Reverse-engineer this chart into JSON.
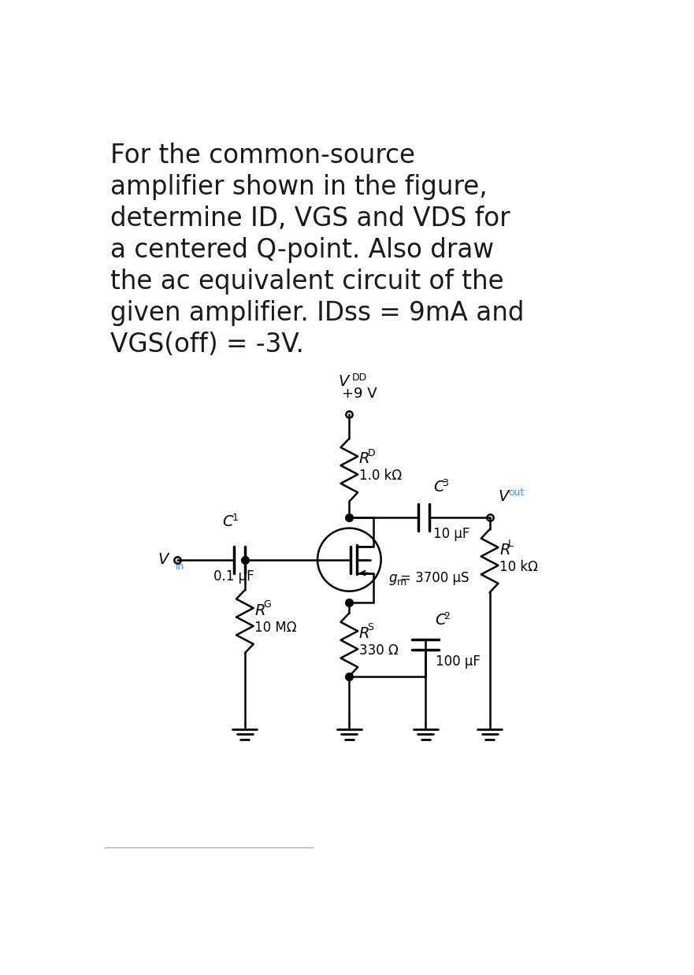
{
  "title_lines": [
    "For the common-source",
    "amplifier shown in the figure,",
    "determine ID, VGS and VDS for",
    "a centered Q-point. Also draw",
    "the ac equivalent circuit of the",
    "given amplifier. IDss = 9mA and",
    "VGS(off) = -3V."
  ],
  "bg_color": "#ffffff",
  "text_color": "#1a1a1a",
  "circuit_color": "#000000",
  "blue_color": "#4a90d9",
  "title_fontsize": 23.5,
  "label_fontsize": 13,
  "small_fontsize": 12,
  "sub_fontsize": 9,
  "VDD_label": "V",
  "VDD_sub": "DD",
  "VDD_val": "+9 V",
  "RD_label": "R",
  "RD_sub": "D",
  "RD_val": "1.0 kΩ",
  "C3_label": "C",
  "C3_sub": "3",
  "C3_val": "10 μF",
  "Vout_label": "V",
  "Vout_sub": "out",
  "C1_label": "C",
  "C1_sub": "1",
  "C1_val": "0.1 μF",
  "Vin_label": "V",
  "Vin_sub": "in",
  "RG_label": "R",
  "RG_sub": "G",
  "RG_val": "10 MΩ",
  "RS_label": "R",
  "RS_sub": "S",
  "RS_val": "330 Ω",
  "C2_label": "C",
  "C2_sub": "2",
  "C2_val": "100 μF",
  "RL_label": "R",
  "RL_sub": "L",
  "RL_val": "10 kΩ",
  "gm_label": "g",
  "gm_sub": "m",
  "gm_val": "= 3700 μS",
  "border_color": "#aaaaaa"
}
